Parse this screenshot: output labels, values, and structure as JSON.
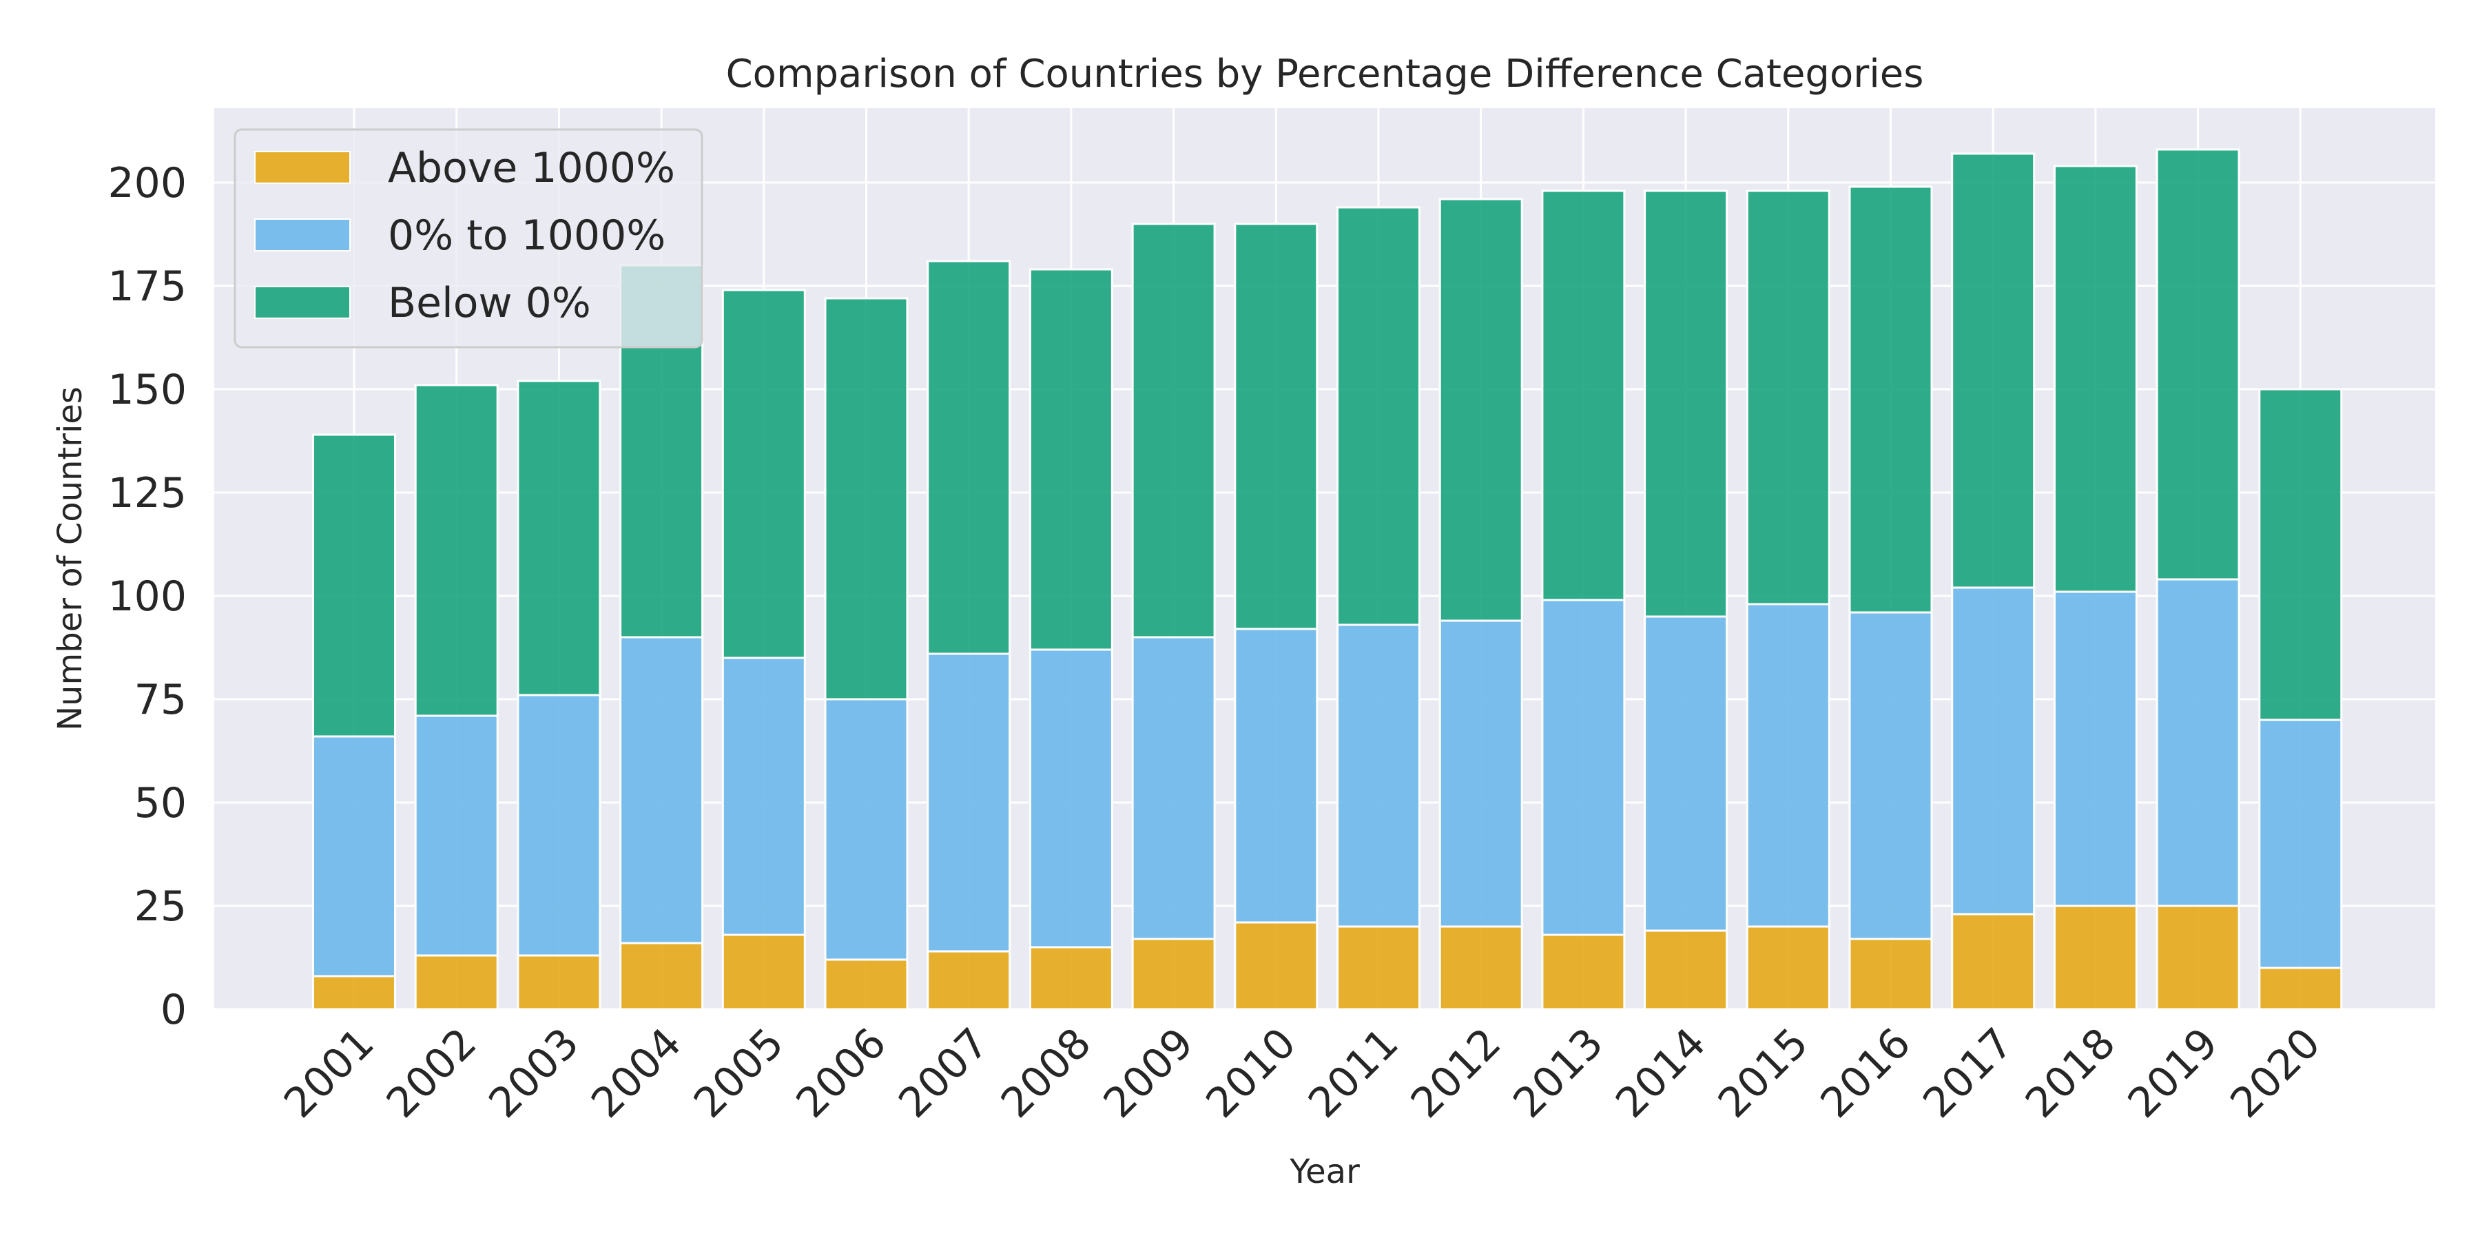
{
  "chart_data": {
    "type": "bar",
    "stacked": true,
    "title": "Comparison of Countries by Percentage Difference Categories",
    "xlabel": "Year",
    "ylabel": "Number of Countries",
    "categories": [
      "2001",
      "2002",
      "2003",
      "2004",
      "2005",
      "2006",
      "2007",
      "2008",
      "2009",
      "2010",
      "2011",
      "2012",
      "2013",
      "2014",
      "2015",
      "2016",
      "2017",
      "2018",
      "2019",
      "2020"
    ],
    "series": [
      {
        "name": "Above 1000%",
        "color": "#E6A817",
        "values": [
          8,
          13,
          13,
          16,
          18,
          12,
          14,
          15,
          17,
          21,
          20,
          20,
          18,
          19,
          20,
          17,
          23,
          25,
          25,
          10
        ]
      },
      {
        "name": "0% to 1000%",
        "color": "#6CB8EA",
        "values": [
          58,
          58,
          63,
          74,
          67,
          63,
          72,
          72,
          73,
          71,
          73,
          74,
          81,
          76,
          78,
          79,
          79,
          76,
          79,
          60
        ]
      },
      {
        "name": "Below 0%",
        "color": "#1AA57E",
        "values": [
          73,
          80,
          76,
          90,
          89,
          97,
          95,
          92,
          100,
          98,
          101,
          102,
          99,
          103,
          100,
          103,
          105,
          103,
          104,
          80
        ]
      }
    ],
    "ylim": [
      0,
      218
    ],
    "yticks": [
      0,
      25,
      50,
      75,
      100,
      125,
      150,
      175,
      200
    ],
    "grid": true,
    "legend_position": "top-left"
  }
}
